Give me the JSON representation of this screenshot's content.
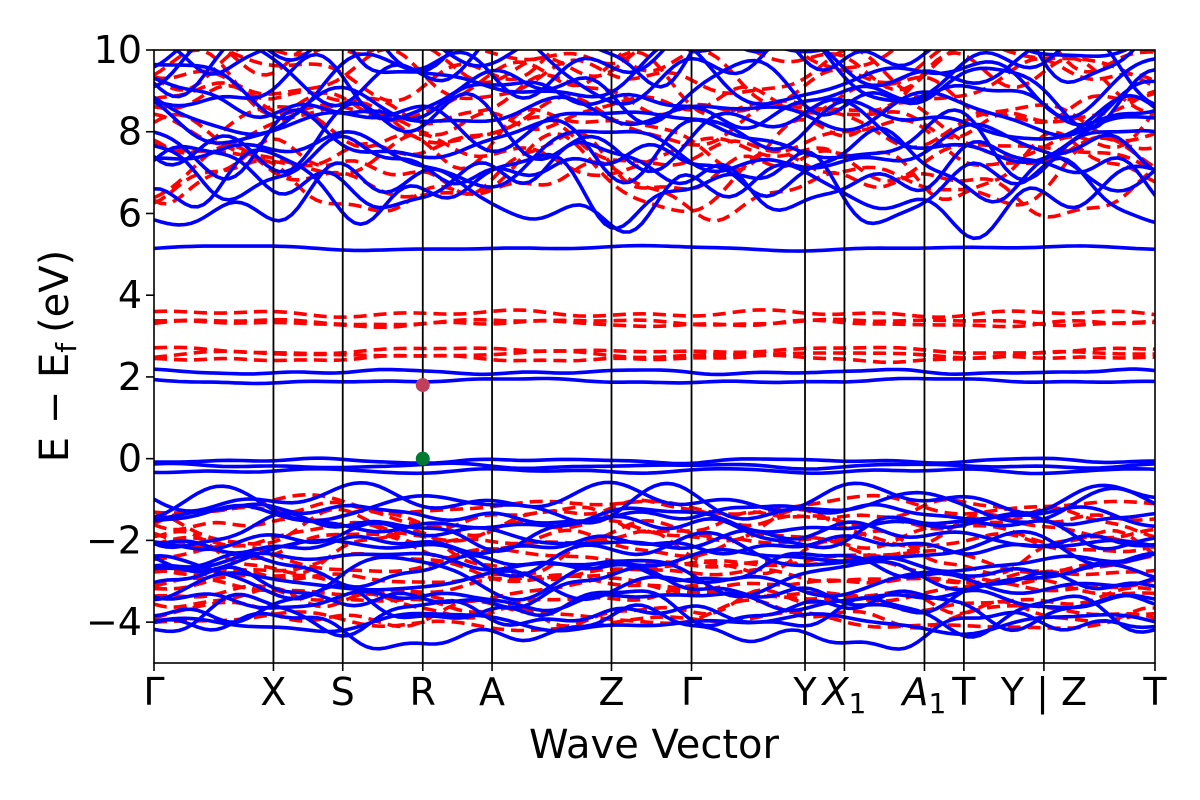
{
  "chart_data": {
    "type": "line",
    "xlabel": "Wave Vector",
    "ylabel_main": "E − E",
    "ylabel_sub": "f",
    "ylabel_unit": "(eV)",
    "ylim": [
      -5,
      10
    ],
    "yticks": [
      {
        "value": 10,
        "label": "10"
      },
      {
        "value": 8,
        "label": "8"
      },
      {
        "value": 6,
        "label": "6"
      },
      {
        "value": 4,
        "label": "4"
      },
      {
        "value": 2,
        "label": "2"
      },
      {
        "value": 0,
        "label": "0"
      },
      {
        "value": -2,
        "label": "−2"
      },
      {
        "value": -4,
        "label": "−4"
      }
    ],
    "kpoints": [
      {
        "x": 0.0,
        "label": "Γ",
        "sub": ""
      },
      {
        "x": 1.0,
        "label": "X",
        "sub": ""
      },
      {
        "x": 1.58,
        "label": "S",
        "sub": ""
      },
      {
        "x": 2.25,
        "label": "R",
        "sub": ""
      },
      {
        "x": 2.83,
        "label": "A",
        "sub": ""
      },
      {
        "x": 3.83,
        "label": "Z",
        "sub": ""
      },
      {
        "x": 4.5,
        "label": "Γ",
        "sub": ""
      },
      {
        "x": 5.45,
        "label": "Y",
        "sub": ""
      },
      {
        "x": 5.78,
        "label": "X",
        "sub": "1"
      },
      {
        "x": 6.45,
        "label": "A",
        "sub": "1"
      },
      {
        "x": 6.78,
        "label": "T",
        "sub": ""
      },
      {
        "x": 7.45,
        "label": "Y | Z",
        "sub": ""
      },
      {
        "x": 8.38,
        "label": "T",
        "sub": ""
      }
    ],
    "xlim": [
      0,
      8.38
    ],
    "grid": "vertical lines at high-symmetry points",
    "series_styles": [
      {
        "style": "solid",
        "color": "#0000ff"
      },
      {
        "style": "dashed",
        "color": "#ff0000"
      }
    ],
    "flat_bands_solid": [
      5.15,
      2.12,
      1.9,
      -0.05,
      -0.18,
      -0.3
    ],
    "flat_bands_dashed": [
      3.55,
      3.35,
      3.3,
      2.65,
      2.55,
      2.45
    ],
    "markers": [
      {
        "x": 2.25,
        "y": 1.8,
        "color": "#c0405a"
      },
      {
        "x": 2.25,
        "y": 0.0,
        "color": "#007a2e"
      }
    ]
  },
  "colors": {
    "solid": "#0000ff",
    "dashed": "#ff0000",
    "axis": "#000000"
  }
}
